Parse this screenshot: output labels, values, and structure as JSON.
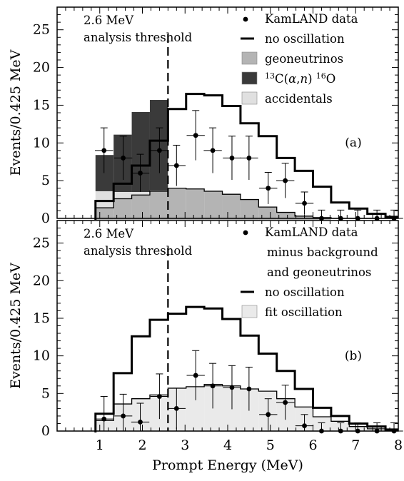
{
  "chart_data": [
    {
      "panel": "a",
      "type": "histogram",
      "ylabel": "Events/0.425 MeV",
      "xlim": [
        0,
        8
      ],
      "ylim": [
        0,
        28
      ],
      "xticks": [
        "1",
        "2",
        "3",
        "4",
        "5",
        "6",
        "7",
        "8"
      ],
      "yticks": [
        "0",
        "5",
        "10",
        "15",
        "20",
        "25"
      ],
      "panel_label": "(a)",
      "threshold": {
        "energy": 2.6,
        "label_line1": "2.6 MeV",
        "label_line2": "analysis threshold"
      },
      "bin_edges": [
        0.9,
        1.325,
        1.75,
        2.175,
        2.6,
        3.025,
        3.45,
        3.875,
        4.3,
        4.725,
        5.15,
        5.575,
        6.0,
        6.425,
        6.85,
        7.275,
        7.7,
        8.125
      ],
      "series": [
        {
          "name": "no oscillation",
          "style": "line",
          "values": [
            2.3,
            4.6,
            7.0,
            10.3,
            14.5,
            16.5,
            16.3,
            14.9,
            12.6,
            10.9,
            8.0,
            6.3,
            4.2,
            2.1,
            1.3,
            0.6,
            0.2
          ]
        },
        {
          "name": "geoneutrinos",
          "style": "fill",
          "color": "#b4b4b4",
          "values": [
            1.4,
            2.6,
            3.1,
            3.6,
            4.0,
            3.9,
            3.6,
            3.2,
            2.5,
            1.5,
            0.8,
            0.3,
            0.1,
            0.0,
            0.0,
            0.0,
            0.0
          ]
        },
        {
          "name": "accidentals",
          "style": "fill",
          "color": "#e0e0e0",
          "values": [
            2.2,
            0.9,
            0.4,
            0.1,
            0.0,
            0.0,
            0.0,
            0.0,
            0.0,
            0.0,
            0.0,
            0.0,
            0.0,
            0.0,
            0.0,
            0.0,
            0.0
          ]
        },
        {
          "name": "13C(α,n) 16O",
          "style": "fill",
          "color": "#3a3a3a",
          "values": [
            4.8,
            7.6,
            10.6,
            12.0,
            0.0,
            0.0,
            0.0,
            0.0,
            0.0,
            0.0,
            0.0,
            0.0,
            0.0,
            0.0,
            0.0,
            0.0,
            0.0
          ]
        },
        {
          "name": "KamLAND data",
          "style": "points",
          "x": [
            1.1,
            1.55,
            1.95,
            2.4,
            2.8,
            3.25,
            3.65,
            4.1,
            4.5,
            4.95,
            5.35,
            5.8,
            6.2,
            6.65,
            7.05,
            7.5,
            7.9
          ],
          "values": [
            9,
            8,
            6,
            9,
            7,
            11,
            9,
            8,
            8,
            4,
            5,
            2,
            0,
            0,
            0,
            0,
            0
          ],
          "yerr": [
            3.0,
            2.9,
            2.5,
            3.0,
            2.7,
            3.3,
            3.0,
            2.9,
            2.9,
            2.1,
            2.3,
            1.5,
            1.1,
            1.1,
            1.1,
            1.1,
            1.1
          ]
        }
      ],
      "legend": {
        "placement": "top-right",
        "entries": [
          {
            "kind": "dot",
            "label": "KamLAND data"
          },
          {
            "kind": "line",
            "label": "no oscillation"
          },
          {
            "kind": "box",
            "color": "#b4b4b4",
            "label": "geoneutrinos"
          },
          {
            "kind": "box",
            "color": "#3a3a3a",
            "label": "13C(α,n) 16O",
            "rich": true
          },
          {
            "kind": "box",
            "color": "#e0e0e0",
            "label": "accidentals"
          }
        ]
      }
    },
    {
      "panel": "b",
      "type": "histogram",
      "xlabel": "Prompt Energy (MeV)",
      "ylabel": "Events/0.425 MeV",
      "xlim": [
        0,
        8
      ],
      "ylim": [
        0,
        28
      ],
      "xticks": [
        "1",
        "2",
        "3",
        "4",
        "5",
        "6",
        "7",
        "8"
      ],
      "yticks": [
        "0",
        "5",
        "10",
        "15",
        "20",
        "25"
      ],
      "panel_label": "(b)",
      "threshold": {
        "energy": 2.6,
        "label_line1": "2.6 MeV",
        "label_line2": "analysis threshold"
      },
      "bin_edges": [
        0.9,
        1.325,
        1.75,
        2.175,
        2.6,
        3.025,
        3.45,
        3.875,
        4.3,
        4.725,
        5.15,
        5.575,
        6.0,
        6.425,
        6.85,
        7.275,
        7.7,
        8.125
      ],
      "series": [
        {
          "name": "no oscillation",
          "style": "line",
          "values": [
            2.3,
            7.7,
            12.6,
            14.8,
            15.6,
            16.5,
            16.3,
            14.9,
            12.7,
            10.3,
            8.0,
            5.6,
            3.1,
            2.0,
            1.0,
            0.6,
            0.2
          ]
        },
        {
          "name": "fit oscillation",
          "style": "fill",
          "color": "#eaeaea",
          "values": [
            1.4,
            3.6,
            4.3,
            4.8,
            5.7,
            5.9,
            6.2,
            6.0,
            5.6,
            5.3,
            4.3,
            3.2,
            1.9,
            1.3,
            0.6,
            0.3,
            0.1
          ]
        },
        {
          "name": "KamLAND data minus background and geoneutrinos",
          "style": "points",
          "x": [
            1.1,
            1.55,
            1.95,
            2.4,
            2.8,
            3.25,
            3.65,
            4.1,
            4.5,
            4.95,
            5.35,
            5.8,
            6.2,
            6.65,
            7.05,
            7.5,
            7.9
          ],
          "values": [
            1.6,
            2.0,
            1.2,
            4.6,
            3.0,
            7.4,
            6.0,
            5.8,
            5.6,
            2.2,
            3.8,
            0.7,
            0.0,
            0.0,
            0.0,
            0.0,
            0.0
          ],
          "yerr": [
            3.0,
            2.9,
            2.5,
            3.0,
            2.7,
            3.3,
            3.0,
            2.9,
            2.9,
            2.1,
            2.3,
            1.5,
            1.1,
            1.1,
            1.1,
            1.1,
            1.1
          ]
        }
      ],
      "legend": {
        "placement": "top-right",
        "entries": [
          {
            "kind": "dot",
            "label": "KamLAND data"
          },
          {
            "kind": "none",
            "label": "minus background"
          },
          {
            "kind": "none",
            "label": "and geoneutrinos"
          },
          {
            "kind": "line",
            "label": "no oscillation"
          },
          {
            "kind": "box",
            "color": "#eaeaea",
            "label": "fit oscillation"
          }
        ]
      }
    }
  ]
}
